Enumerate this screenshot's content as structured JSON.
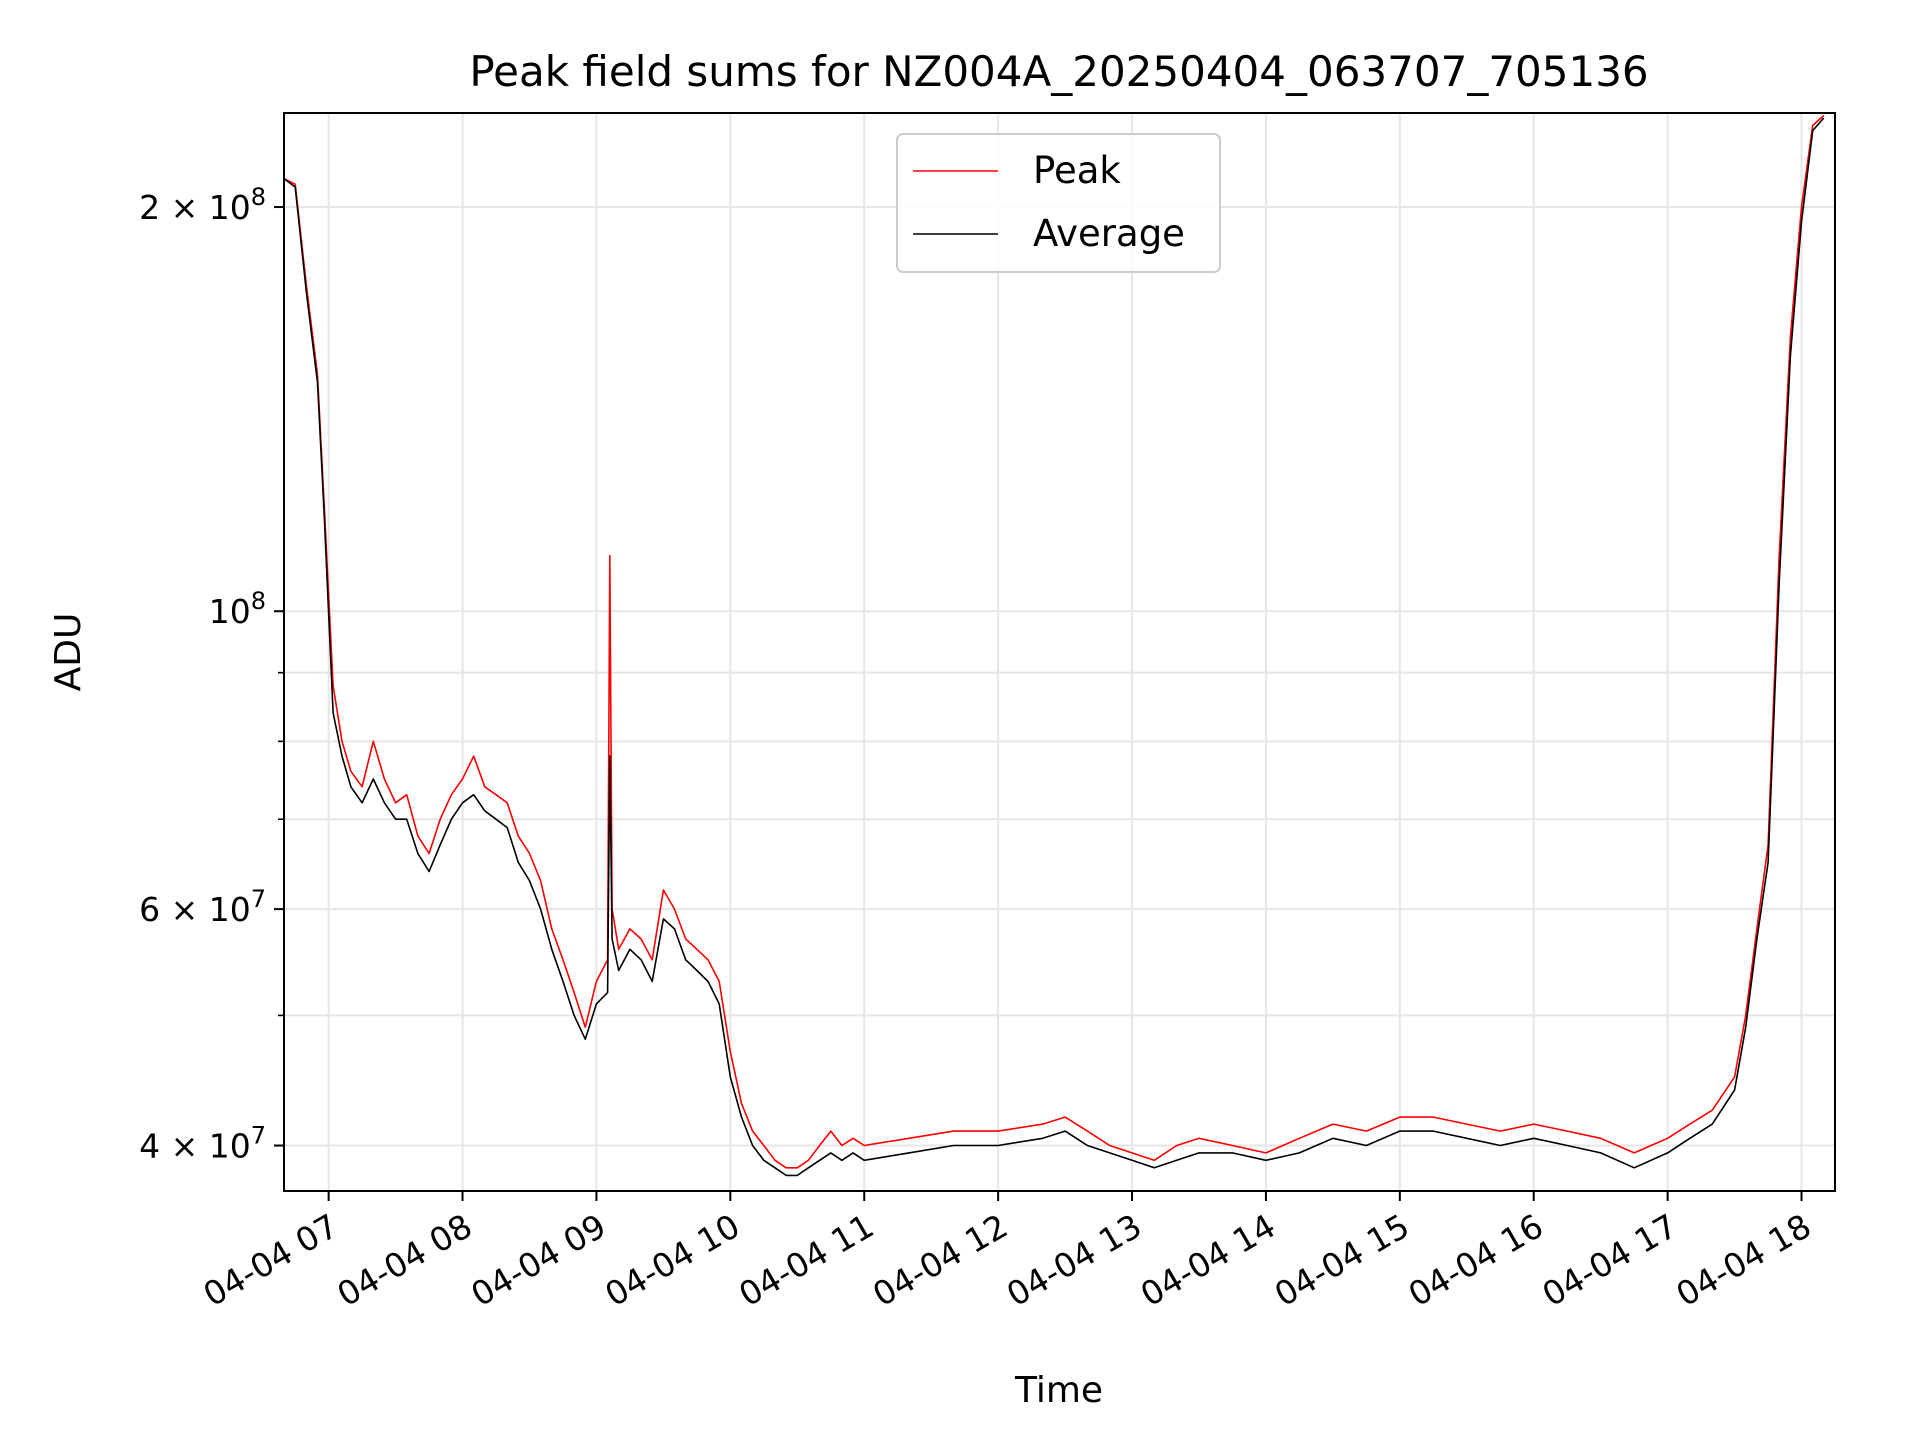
{
  "chart_data": {
    "type": "line",
    "title": "Peak field sums for NZ004A_20250404_063707_705136",
    "xlabel": "Time",
    "ylabel": "ADU",
    "yscale": "log",
    "ylim": [
      37000000,
      235000000
    ],
    "xlim": [
      "04-04 06:40",
      "04-04 18:15"
    ],
    "grid": true,
    "legend_position": "top-center",
    "x_tick_labels": [
      "04-04 07",
      "04-04 08",
      "04-04 09",
      "04-04 10",
      "04-04 11",
      "04-04 12",
      "04-04 13",
      "04-04 14",
      "04-04 15",
      "04-04 16",
      "04-04 17",
      "04-04 18"
    ],
    "x_tick_values": [
      "04-04 07:00",
      "04-04 08:00",
      "04-04 09:00",
      "04-04 10:00",
      "04-04 11:00",
      "04-04 12:00",
      "04-04 13:00",
      "04-04 14:00",
      "04-04 15:00",
      "04-04 16:00",
      "04-04 17:00",
      "04-04 18:00"
    ],
    "y_major_ticks": [
      {
        "value": 40000000,
        "mantissa": "4",
        "exponent": "7"
      },
      {
        "value": 60000000,
        "mantissa": "6",
        "exponent": "7"
      },
      {
        "value": 100000000,
        "mantissa": "",
        "exponent": "8"
      },
      {
        "value": 200000000,
        "mantissa": "2",
        "exponent": "8"
      }
    ],
    "y_minor_ticks": [
      50000000,
      70000000,
      80000000,
      90000000
    ],
    "series": [
      {
        "name": "Peak",
        "color": "#ff0000",
        "x": [
          "04-04 06:40",
          "04-04 06:45",
          "04-04 06:50",
          "04-04 06:55",
          "04-04 06:58",
          "04-04 07:02",
          "04-04 07:06",
          "04-04 07:10",
          "04-04 07:15",
          "04-04 07:20",
          "04-04 07:25",
          "04-04 07:30",
          "04-04 07:35",
          "04-04 07:40",
          "04-04 07:45",
          "04-04 07:50",
          "04-04 07:55",
          "04-04 08:00",
          "04-04 08:05",
          "04-04 08:10",
          "04-04 08:15",
          "04-04 08:20",
          "04-04 08:25",
          "04-04 08:30",
          "04-04 08:35",
          "04-04 08:40",
          "04-04 08:45",
          "04-04 08:50",
          "04-04 08:55",
          "04-04 09:00",
          "04-04 09:05",
          "04-04 09:06",
          "04-04 09:07",
          "04-04 09:10",
          "04-04 09:15",
          "04-04 09:20",
          "04-04 09:25",
          "04-04 09:30",
          "04-04 09:35",
          "04-04 09:40",
          "04-04 09:45",
          "04-04 09:50",
          "04-04 09:55",
          "04-04 10:00",
          "04-04 10:05",
          "04-04 10:10",
          "04-04 10:15",
          "04-04 10:20",
          "04-04 10:25",
          "04-04 10:30",
          "04-04 10:35",
          "04-04 10:40",
          "04-04 10:45",
          "04-04 10:50",
          "04-04 10:55",
          "04-04 11:00",
          "04-04 11:20",
          "04-04 11:40",
          "04-04 12:00",
          "04-04 12:20",
          "04-04 12:30",
          "04-04 12:40",
          "04-04 12:50",
          "04-04 13:00",
          "04-04 13:10",
          "04-04 13:20",
          "04-04 13:30",
          "04-04 13:45",
          "04-04 14:00",
          "04-04 14:15",
          "04-04 14:30",
          "04-04 14:45",
          "04-04 15:00",
          "04-04 15:15",
          "04-04 15:30",
          "04-04 15:45",
          "04-04 16:00",
          "04-04 16:15",
          "04-04 16:30",
          "04-04 16:45",
          "04-04 17:00",
          "04-04 17:10",
          "04-04 17:20",
          "04-04 17:30",
          "04-04 17:35",
          "04-04 17:40",
          "04-04 17:45",
          "04-04 17:50",
          "04-04 17:55",
          "04-04 18:00",
          "04-04 18:05",
          "04-04 18:10"
        ],
        "y": [
          210000000,
          208000000,
          175000000,
          150000000,
          120000000,
          88000000,
          80000000,
          76000000,
          74000000,
          80000000,
          75000000,
          72000000,
          73000000,
          68000000,
          66000000,
          70000000,
          73000000,
          75000000,
          78000000,
          74000000,
          73000000,
          72000000,
          68000000,
          66000000,
          63000000,
          58000000,
          55000000,
          52000000,
          49000000,
          53000000,
          55000000,
          110000000,
          60000000,
          56000000,
          58000000,
          57000000,
          55000000,
          62000000,
          60000000,
          57000000,
          56000000,
          55000000,
          53000000,
          47000000,
          43000000,
          41000000,
          40000000,
          39000000,
          38500000,
          38500000,
          39000000,
          40000000,
          41000000,
          40000000,
          40500000,
          40000000,
          40500000,
          41000000,
          41000000,
          41500000,
          42000000,
          41000000,
          40000000,
          39500000,
          39000000,
          40000000,
          40500000,
          40000000,
          39500000,
          40500000,
          41500000,
          41000000,
          42000000,
          42000000,
          41500000,
          41000000,
          41500000,
          41000000,
          40500000,
          39500000,
          40500000,
          41500000,
          42500000,
          45000000,
          50000000,
          58000000,
          67000000,
          110000000,
          160000000,
          200000000,
          230000000,
          234000000
        ]
      },
      {
        "name": "Average",
        "color": "#000000",
        "x": [
          "04-04 06:40",
          "04-04 06:45",
          "04-04 06:50",
          "04-04 06:55",
          "04-04 06:58",
          "04-04 07:02",
          "04-04 07:06",
          "04-04 07:10",
          "04-04 07:15",
          "04-04 07:20",
          "04-04 07:25",
          "04-04 07:30",
          "04-04 07:35",
          "04-04 07:40",
          "04-04 07:45",
          "04-04 07:50",
          "04-04 07:55",
          "04-04 08:00",
          "04-04 08:05",
          "04-04 08:10",
          "04-04 08:15",
          "04-04 08:20",
          "04-04 08:25",
          "04-04 08:30",
          "04-04 08:35",
          "04-04 08:40",
          "04-04 08:45",
          "04-04 08:50",
          "04-04 08:55",
          "04-04 09:00",
          "04-04 09:05",
          "04-04 09:06",
          "04-04 09:07",
          "04-04 09:10",
          "04-04 09:15",
          "04-04 09:20",
          "04-04 09:25",
          "04-04 09:30",
          "04-04 09:35",
          "04-04 09:40",
          "04-04 09:45",
          "04-04 09:50",
          "04-04 09:55",
          "04-04 10:00",
          "04-04 10:05",
          "04-04 10:10",
          "04-04 10:15",
          "04-04 10:20",
          "04-04 10:25",
          "04-04 10:30",
          "04-04 10:35",
          "04-04 10:40",
          "04-04 10:45",
          "04-04 10:50",
          "04-04 10:55",
          "04-04 11:00",
          "04-04 11:20",
          "04-04 11:40",
          "04-04 12:00",
          "04-04 12:20",
          "04-04 12:30",
          "04-04 12:40",
          "04-04 12:50",
          "04-04 13:00",
          "04-04 13:10",
          "04-04 13:20",
          "04-04 13:30",
          "04-04 13:45",
          "04-04 14:00",
          "04-04 14:15",
          "04-04 14:30",
          "04-04 14:45",
          "04-04 15:00",
          "04-04 15:15",
          "04-04 15:30",
          "04-04 15:45",
          "04-04 16:00",
          "04-04 16:15",
          "04-04 16:30",
          "04-04 16:45",
          "04-04 17:00",
          "04-04 17:10",
          "04-04 17:20",
          "04-04 17:30",
          "04-04 17:35",
          "04-04 17:40",
          "04-04 17:45",
          "04-04 17:50",
          "04-04 17:55",
          "04-04 18:00",
          "04-04 18:05",
          "04-04 18:10"
        ],
        "y": [
          210000000,
          207000000,
          173000000,
          148000000,
          118000000,
          84000000,
          78000000,
          74000000,
          72000000,
          75000000,
          72000000,
          70000000,
          70000000,
          66000000,
          64000000,
          67000000,
          70000000,
          72000000,
          73000000,
          71000000,
          70000000,
          69000000,
          65000000,
          63000000,
          60000000,
          56000000,
          53000000,
          50000000,
          48000000,
          51000000,
          52000000,
          78000000,
          57000000,
          54000000,
          56000000,
          55000000,
          53000000,
          59000000,
          58000000,
          55000000,
          54000000,
          53000000,
          51000000,
          45000000,
          42000000,
          40000000,
          39000000,
          38500000,
          38000000,
          38000000,
          38500000,
          39000000,
          39500000,
          39000000,
          39500000,
          39000000,
          39500000,
          40000000,
          40000000,
          40500000,
          41000000,
          40000000,
          39500000,
          39000000,
          38500000,
          39000000,
          39500000,
          39500000,
          39000000,
          39500000,
          40500000,
          40000000,
          41000000,
          41000000,
          40500000,
          40000000,
          40500000,
          40000000,
          39500000,
          38500000,
          39500000,
          40500000,
          41500000,
          44000000,
          49000000,
          57000000,
          65000000,
          105000000,
          155000000,
          195000000,
          228000000,
          233000000
        ]
      }
    ]
  }
}
